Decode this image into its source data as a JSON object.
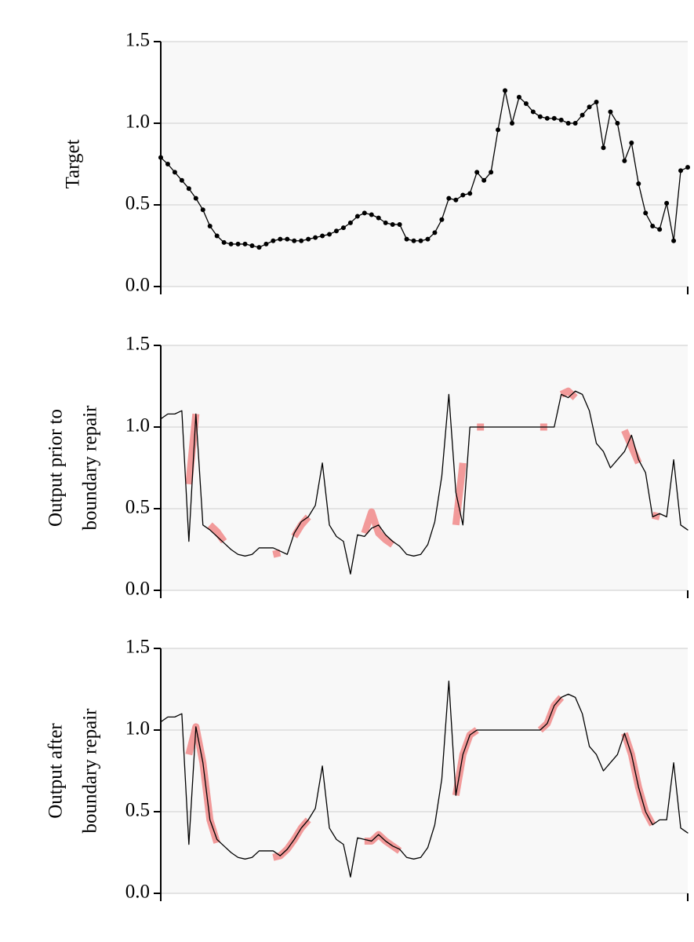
{
  "chart_data": [
    {
      "type": "line",
      "ylabel": [
        "Target"
      ],
      "markers": true,
      "grid": true,
      "background": "#f8f8f8",
      "x": [
        0,
        1,
        2,
        3,
        4,
        5,
        6,
        7,
        8,
        9,
        10,
        11,
        12,
        13,
        14,
        15,
        16,
        17,
        18,
        19,
        20,
        21,
        22,
        23,
        24,
        25,
        26,
        27,
        28,
        29,
        30,
        31,
        32,
        33,
        34,
        35,
        36,
        37,
        38,
        39,
        40,
        41,
        42,
        43,
        44,
        45,
        46,
        47,
        48,
        49,
        50,
        51,
        52,
        53,
        54,
        55,
        56,
        57,
        58,
        59,
        60,
        61,
        62,
        63,
        64,
        65,
        66,
        67,
        68,
        69,
        70,
        71,
        72,
        73,
        74,
        75
      ],
      "series": [
        {
          "color": "#000000",
          "values": [
            0.79,
            0.75,
            0.7,
            0.65,
            0.6,
            0.54,
            0.47,
            0.37,
            0.31,
            0.27,
            0.26,
            0.26,
            0.26,
            0.25,
            0.24,
            0.26,
            0.28,
            0.29,
            0.29,
            0.28,
            0.28,
            0.29,
            0.3,
            0.31,
            0.32,
            0.34,
            0.36,
            0.39,
            0.43,
            0.45,
            0.44,
            0.42,
            0.39,
            0.38,
            0.38,
            0.29,
            0.28,
            0.28,
            0.29,
            0.33,
            0.41,
            0.54,
            0.53,
            0.56,
            0.57,
            0.7,
            0.65,
            0.7,
            0.96,
            1.2,
            1.0,
            1.16,
            1.12,
            1.07,
            1.04,
            1.03,
            1.03,
            1.02,
            1.0,
            1.0,
            1.05,
            1.1,
            1.13,
            0.85,
            1.07,
            1.0,
            0.77,
            0.88,
            0.63,
            0.45,
            0.37,
            0.35,
            0.51,
            0.28,
            0.71,
            0.73
          ]
        }
      ],
      "xlim": [
        0,
        75
      ],
      "xticks": [
        0,
        75
      ],
      "ylim": [
        0,
        1.5
      ],
      "yticks": [
        {
          "value": 0,
          "label": "0.0"
        },
        0.5,
        {
          "value": 1,
          "label": "1.0"
        },
        1.5
      ]
    },
    {
      "type": "line",
      "ylabel": [
        "Output prior to",
        "boundary repair"
      ],
      "markers": false,
      "grid": true,
      "background": "#f8f8f8",
      "x": [
        0,
        1,
        2,
        3,
        4,
        5,
        6,
        7,
        8,
        9,
        10,
        11,
        12,
        13,
        14,
        15,
        16,
        17,
        18,
        19,
        20,
        21,
        22,
        23,
        24,
        25,
        26,
        27,
        28,
        29,
        30,
        31,
        32,
        33,
        34,
        35,
        36,
        37,
        38,
        39,
        40,
        41,
        42,
        43,
        44,
        45,
        46,
        47,
        48,
        49,
        50,
        51,
        52,
        53,
        54,
        55,
        56,
        57,
        58,
        59,
        60,
        61,
        62,
        63,
        64,
        65,
        66,
        67,
        68,
        69,
        70,
        71,
        72,
        73,
        74,
        75
      ],
      "series": [
        {
          "color": "#000000",
          "values": [
            1.05,
            1.08,
            1.08,
            1.1,
            0.3,
            1.08,
            0.4,
            0.37,
            0.33,
            0.29,
            0.25,
            0.22,
            0.21,
            0.22,
            0.26,
            0.26,
            0.26,
            0.24,
            0.22,
            0.35,
            0.42,
            0.45,
            0.52,
            0.78,
            0.4,
            0.33,
            0.3,
            0.1,
            0.34,
            0.33,
            0.38,
            0.4,
            0.34,
            0.3,
            0.27,
            0.22,
            0.21,
            0.22,
            0.28,
            0.42,
            0.7,
            1.2,
            0.6,
            0.4,
            1.0,
            1.0,
            1.0,
            1.0,
            1.0,
            1.0,
            1.0,
            1.0,
            1.0,
            1.0,
            1.0,
            1.0,
            1.0,
            1.2,
            1.18,
            1.22,
            1.2,
            1.1,
            0.9,
            0.85,
            0.75,
            0.8,
            0.85,
            0.95,
            0.8,
            0.72,
            0.45,
            0.47,
            0.45,
            0.8,
            0.4,
            0.37
          ]
        },
        {
          "color": "#f29a9a",
          "values": [
            null,
            null,
            null,
            null,
            0.65,
            1.08,
            null,
            0.4,
            0.36,
            0.3,
            null,
            null,
            null,
            null,
            null,
            null,
            0.22,
            0.23,
            null,
            0.33,
            0.4,
            0.45,
            null,
            null,
            null,
            null,
            null,
            null,
            null,
            0.35,
            0.48,
            0.35,
            0.31,
            0.28,
            null,
            null,
            null,
            null,
            null,
            null,
            null,
            null,
            0.4,
            0.78,
            null,
            1.0,
            1.0,
            null,
            null,
            null,
            null,
            null,
            null,
            null,
            1.0,
            1.0,
            null,
            1.2,
            1.22,
            1.18,
            null,
            null,
            null,
            null,
            null,
            null,
            0.98,
            0.88,
            0.78,
            null,
            0.46,
            0.45,
            null,
            null,
            null,
            null
          ]
        }
      ],
      "xlim": [
        0,
        75
      ],
      "xticks": [
        0,
        75
      ],
      "ylim": [
        0,
        1.5
      ],
      "yticks": [
        {
          "value": 0,
          "label": "0.0"
        },
        0.5,
        {
          "value": 1,
          "label": "1.0"
        },
        1.5
      ]
    },
    {
      "type": "line",
      "ylabel": [
        "Output after",
        "boundary repair"
      ],
      "markers": false,
      "grid": true,
      "background": "#f8f8f8",
      "x": [
        0,
        1,
        2,
        3,
        4,
        5,
        6,
        7,
        8,
        9,
        10,
        11,
        12,
        13,
        14,
        15,
        16,
        17,
        18,
        19,
        20,
        21,
        22,
        23,
        24,
        25,
        26,
        27,
        28,
        29,
        30,
        31,
        32,
        33,
        34,
        35,
        36,
        37,
        38,
        39,
        40,
        41,
        42,
        43,
        44,
        45,
        46,
        47,
        48,
        49,
        50,
        51,
        52,
        53,
        54,
        55,
        56,
        57,
        58,
        59,
        60,
        61,
        62,
        63,
        64,
        65,
        66,
        67,
        68,
        69,
        70,
        71,
        72,
        73,
        74,
        75
      ],
      "series": [
        {
          "color": "#000000",
          "values": [
            1.05,
            1.08,
            1.08,
            1.1,
            0.3,
            1.02,
            0.8,
            0.45,
            0.33,
            0.29,
            0.25,
            0.22,
            0.21,
            0.22,
            0.26,
            0.26,
            0.26,
            0.23,
            0.27,
            0.33,
            0.4,
            0.45,
            0.52,
            0.78,
            0.4,
            0.33,
            0.3,
            0.1,
            0.34,
            0.33,
            0.32,
            0.36,
            0.32,
            0.29,
            0.27,
            0.22,
            0.21,
            0.22,
            0.28,
            0.42,
            0.7,
            1.3,
            0.6,
            0.85,
            0.97,
            1.0,
            1.0,
            1.0,
            1.0,
            1.0,
            1.0,
            1.0,
            1.0,
            1.0,
            1.0,
            1.04,
            1.15,
            1.2,
            1.22,
            1.2,
            1.1,
            0.9,
            0.85,
            0.75,
            0.8,
            0.85,
            0.98,
            0.85,
            0.65,
            0.5,
            0.42,
            0.45,
            0.45,
            0.8,
            0.4,
            0.37
          ]
        },
        {
          "color": "#f29a9a",
          "values": [
            null,
            null,
            null,
            null,
            0.85,
            1.02,
            0.8,
            0.45,
            0.31,
            null,
            null,
            null,
            null,
            null,
            null,
            null,
            0.22,
            0.23,
            0.27,
            0.33,
            0.4,
            0.45,
            null,
            null,
            null,
            null,
            null,
            null,
            null,
            0.32,
            0.32,
            0.36,
            0.32,
            0.29,
            0.26,
            null,
            null,
            null,
            null,
            null,
            null,
            null,
            0.6,
            0.85,
            0.97,
            1.0,
            null,
            null,
            null,
            null,
            null,
            null,
            null,
            null,
            1.0,
            1.04,
            1.15,
            1.2,
            null,
            null,
            null,
            null,
            null,
            null,
            null,
            null,
            0.98,
            0.85,
            0.65,
            0.5,
            0.42,
            null,
            null,
            null,
            null,
            null
          ]
        }
      ],
      "xlim": [
        0,
        75
      ],
      "xticks": [
        0,
        75
      ],
      "ylim": [
        0,
        1.5
      ],
      "yticks": [
        {
          "value": 0,
          "label": "0.0"
        },
        0.5,
        {
          "value": 1,
          "label": "1.0"
        },
        1.5
      ]
    }
  ]
}
